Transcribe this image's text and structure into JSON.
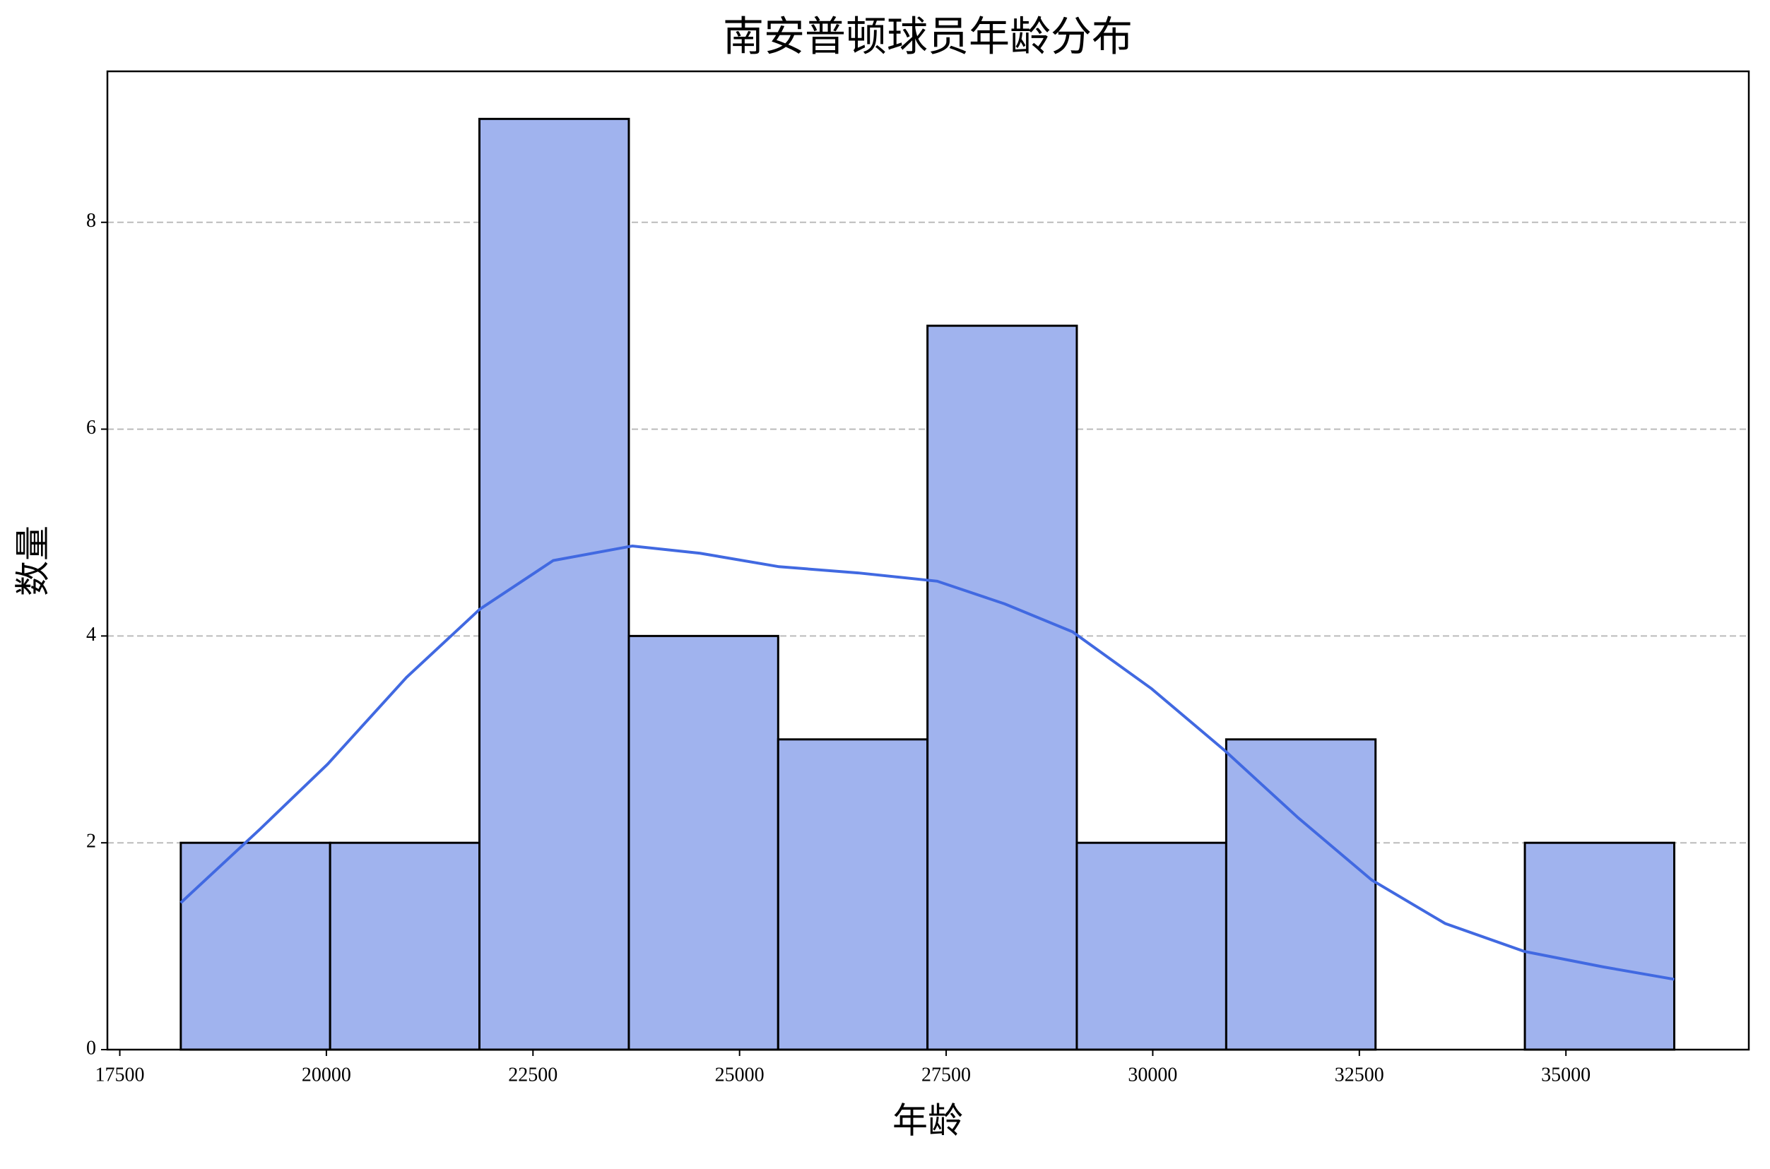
{
  "chart_data": {
    "type": "histogram",
    "title": "南安普顿球员年龄分布",
    "x_label": "年龄",
    "y_label": "数量",
    "bins": [
      18238,
      20045,
      21852,
      23660,
      25467,
      27274,
      29081,
      30889,
      32696,
      34503,
      36311
    ],
    "values": [
      2,
      2,
      9,
      4,
      3,
      7,
      2,
      3,
      0,
      2
    ],
    "color": "#a0b3ee",
    "edge_color": "#000000",
    "kde": {
      "color": "#4169e1",
      "x": [
        18238,
        19194,
        20014,
        20970,
        21858,
        22746,
        23702,
        24522,
        25478,
        26434,
        27391,
        28210,
        29030,
        29986,
        30874,
        31762,
        32650,
        33538,
        34495,
        35451,
        36311
      ],
      "values": [
        1.42,
        2.13,
        2.76,
        3.6,
        4.26,
        4.73,
        4.87,
        4.8,
        4.67,
        4.61,
        4.53,
        4.31,
        4.04,
        3.49,
        2.89,
        2.24,
        1.64,
        1.22,
        0.95,
        0.8,
        0.68
      ]
    },
    "xlim": [
      17350,
      37213
    ],
    "ylim": [
      0,
      9.46
    ],
    "xticks": [
      17500,
      20000,
      22500,
      25000,
      27500,
      30000,
      32500,
      35000
    ],
    "yticks": [
      0,
      2,
      4,
      6,
      8
    ],
    "grid": "y"
  }
}
